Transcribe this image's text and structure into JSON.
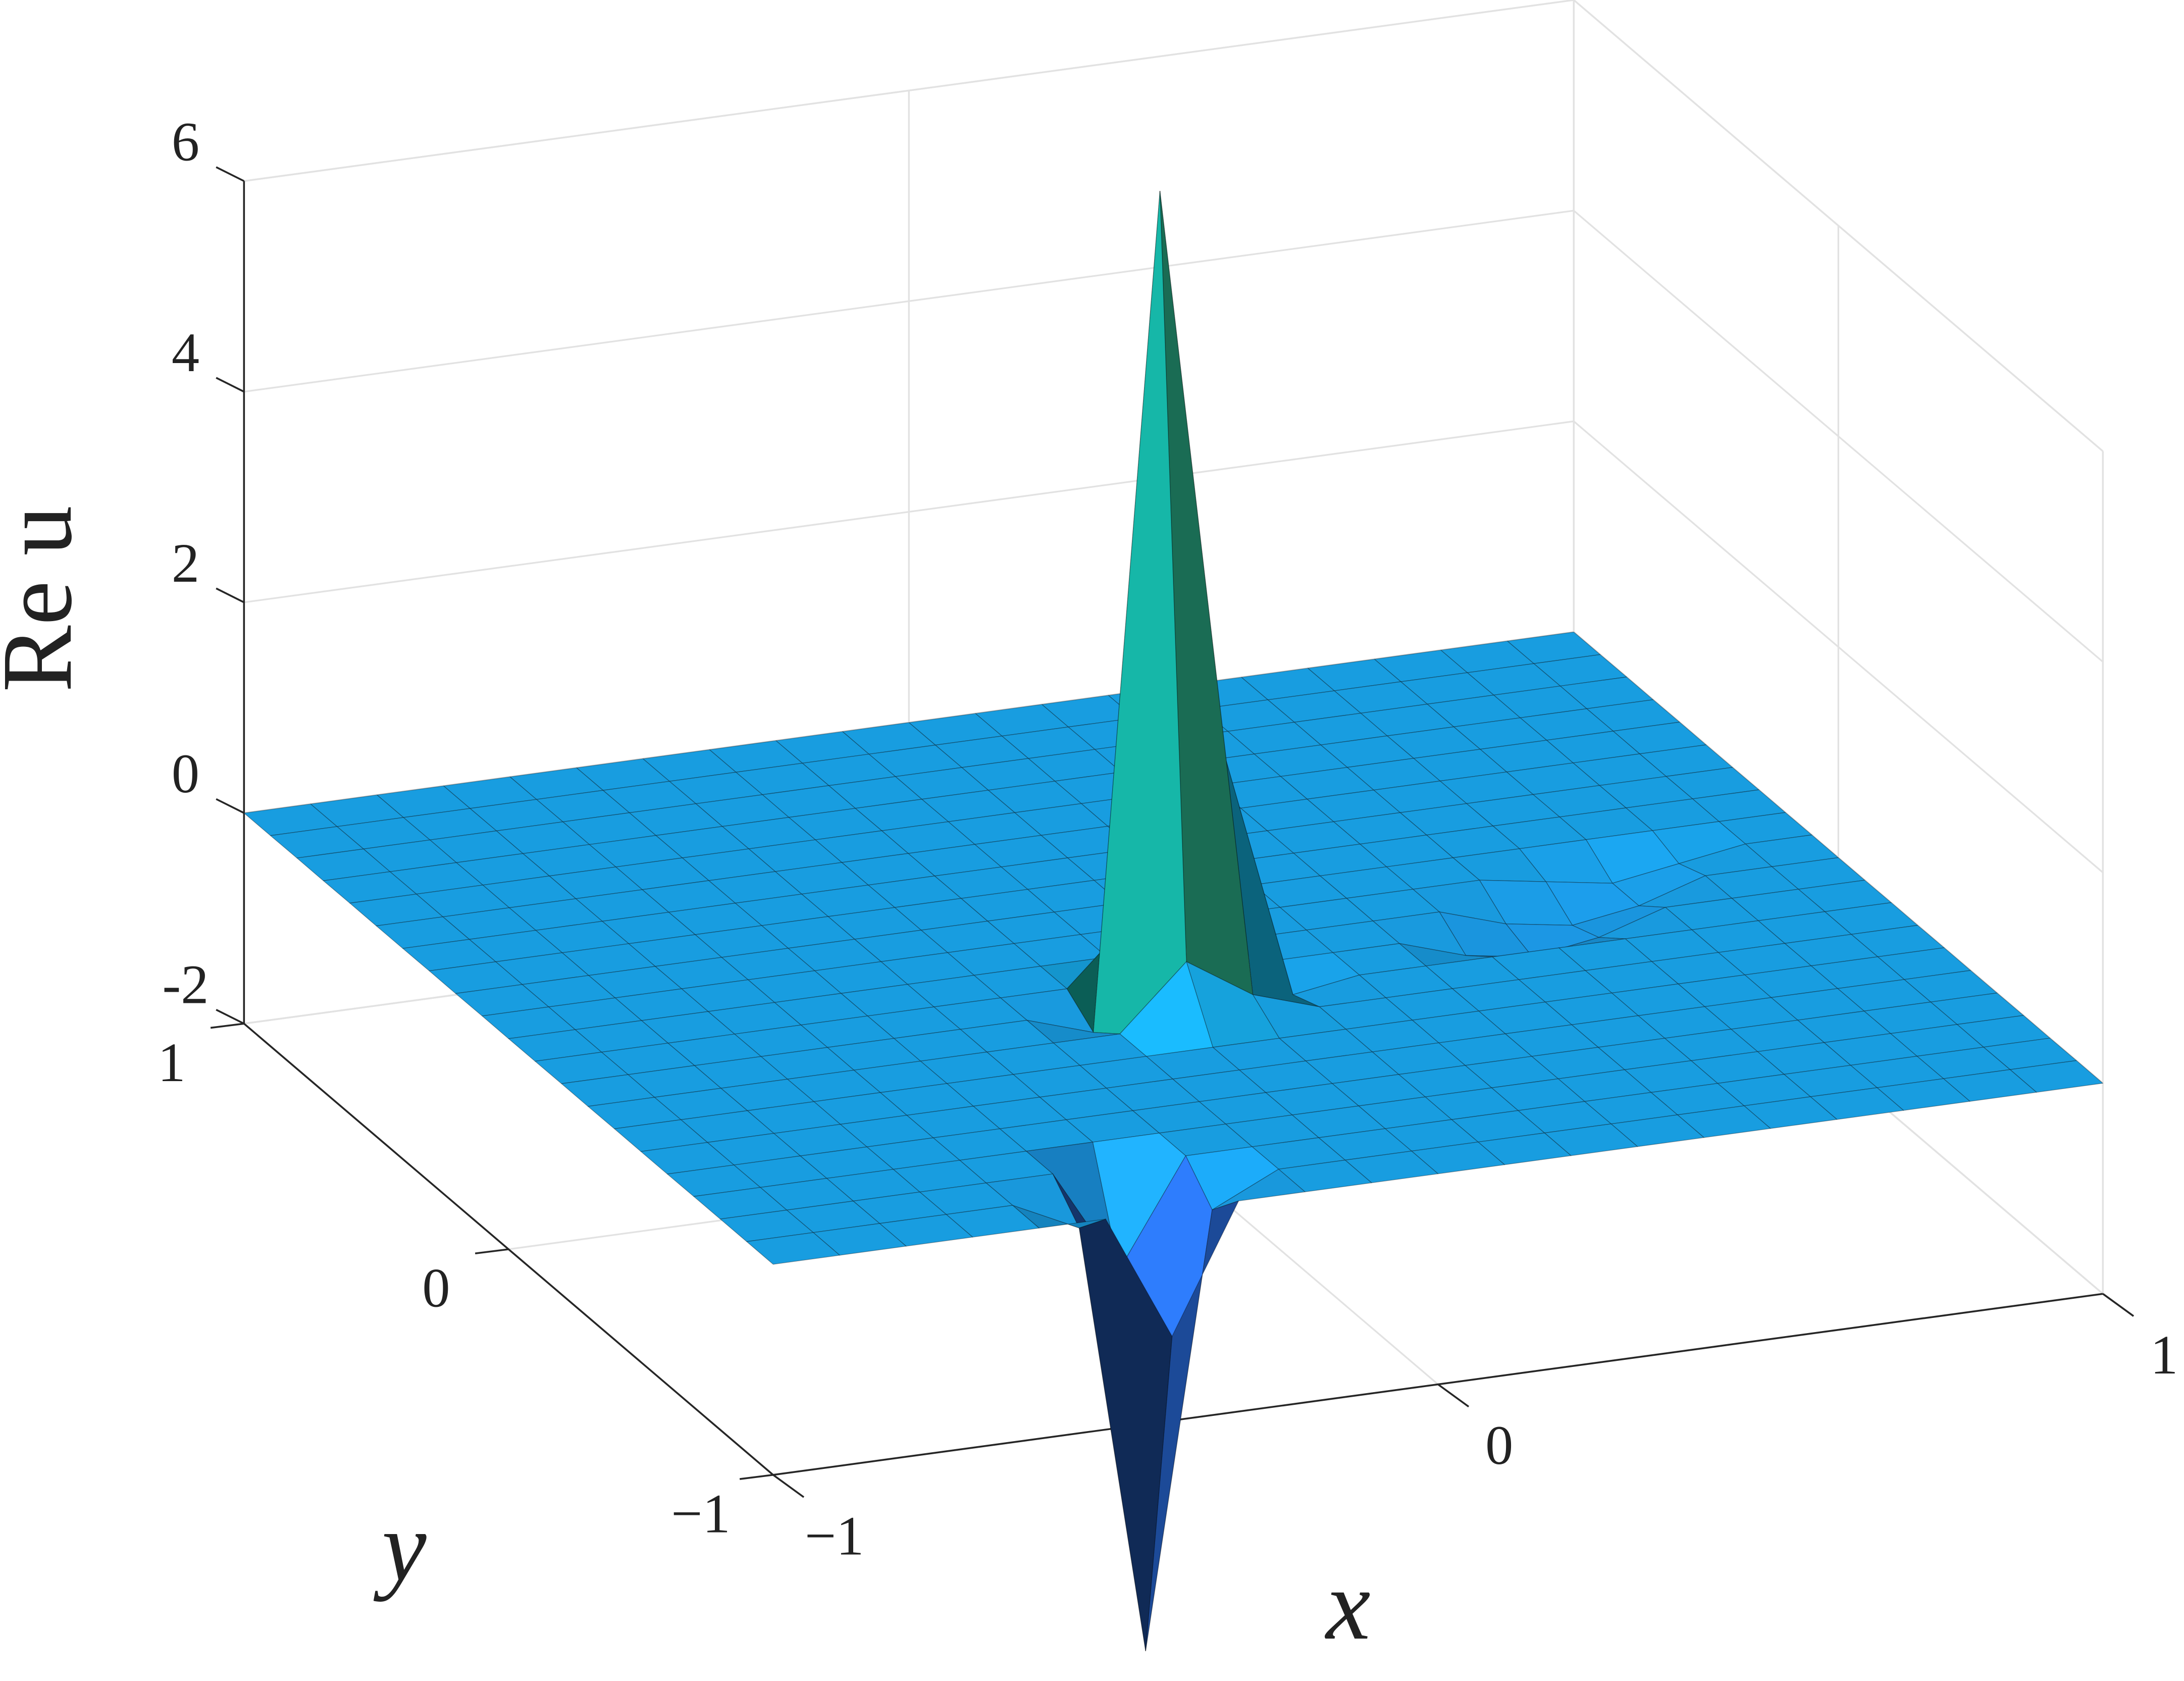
{
  "chart_data": {
    "type": "surface",
    "xlabel": "x",
    "ylabel": "y",
    "zlabel": "Re u",
    "xlim": [
      -1,
      1
    ],
    "ylim": [
      -1,
      1
    ],
    "zlim": [
      -2,
      6
    ],
    "xticks": [
      {
        "value": -1,
        "label": "−1"
      },
      0,
      1
    ],
    "yticks": [
      {
        "value": -1,
        "label": "−1"
      },
      0,
      1
    ],
    "zticks": [
      -2,
      0,
      2,
      4,
      6
    ],
    "grid": true,
    "colormap": "parula",
    "x": [
      -1,
      -0.9,
      -0.8,
      -0.7,
      -0.6,
      -0.5,
      -0.4,
      -0.3,
      -0.2,
      -0.1,
      0,
      0.1,
      0.2,
      0.3,
      0.4,
      0.5,
      0.6,
      0.7,
      0.8,
      0.9,
      1
    ],
    "y": [
      -1,
      -0.9,
      -0.8,
      -0.7,
      -0.6,
      -0.5,
      -0.4,
      -0.3,
      -0.2,
      -0.1,
      0,
      0.1,
      0.2,
      0.3,
      0.4,
      0.5,
      0.6,
      0.7,
      0.8,
      0.9,
      1
    ],
    "z": [
      [
        0,
        0,
        0,
        0,
        0,
        0,
        -1.2,
        0,
        0,
        0,
        0,
        0,
        0,
        0,
        0,
        0,
        0,
        0,
        0,
        0,
        0
      ],
      [
        0,
        0,
        0,
        0,
        0,
        -0.3,
        -4.4,
        -0.3,
        0,
        0,
        0,
        0,
        0,
        0,
        0,
        0,
        0,
        0,
        0,
        0,
        0
      ],
      [
        0,
        0,
        0,
        0,
        0,
        0,
        -1.0,
        0,
        0,
        0,
        0,
        0,
        0,
        0,
        0,
        0,
        0,
        0,
        0,
        0,
        0
      ],
      [
        0,
        0,
        0,
        0,
        0,
        0,
        0,
        0,
        0,
        0,
        0,
        0,
        0,
        0,
        0,
        0,
        0,
        0,
        0,
        0,
        0
      ],
      [
        0,
        0,
        0,
        0,
        0,
        0,
        0,
        0,
        0,
        0,
        0,
        0,
        0,
        0,
        0,
        0,
        0,
        0,
        0,
        0,
        0
      ],
      [
        0,
        0,
        0,
        0,
        0,
        0,
        0,
        0,
        0,
        0,
        0,
        0,
        0,
        0,
        0,
        0,
        0,
        0,
        0,
        0,
        0
      ],
      [
        0,
        0,
        0,
        0,
        0,
        0,
        0,
        0,
        0,
        0,
        0,
        0,
        0,
        0,
        0,
        0,
        0,
        0,
        0,
        0,
        0
      ],
      [
        0,
        0,
        0,
        0,
        0,
        0,
        0,
        0,
        0,
        0.6,
        0.2,
        0,
        0,
        0,
        0,
        0,
        0,
        0,
        0,
        0,
        0
      ],
      [
        0,
        0,
        0,
        0,
        0,
        0,
        0,
        0,
        -0.2,
        7.7,
        2.2,
        -0.1,
        0,
        0,
        0,
        0,
        0,
        0,
        0,
        0,
        0
      ],
      [
        0,
        0,
        0,
        0,
        0,
        0,
        0,
        0,
        0,
        0.6,
        0.3,
        0,
        0,
        0,
        -0.2,
        -0.3,
        -0.2,
        0,
        0,
        0,
        0
      ],
      [
        0,
        0,
        0,
        0,
        0,
        0,
        0,
        0,
        0,
        0,
        0,
        0,
        0,
        0,
        0,
        -0.2,
        -0.3,
        -0.2,
        0,
        0,
        0
      ],
      [
        0,
        0,
        0,
        0,
        0,
        0,
        0,
        0,
        0,
        0,
        0,
        0,
        0,
        0,
        0,
        0,
        -0.1,
        -0.2,
        -0.1,
        0,
        0
      ],
      [
        0,
        0,
        0,
        0,
        0,
        0,
        0,
        0,
        0,
        0,
        0,
        0,
        0,
        0,
        0,
        0,
        0,
        0,
        0,
        0,
        0
      ],
      [
        0,
        0,
        0,
        0,
        0,
        0,
        0,
        0,
        0,
        0,
        0,
        0,
        0,
        0,
        0,
        0,
        0,
        0,
        0,
        0,
        0
      ],
      [
        0,
        0,
        0,
        0,
        0,
        0,
        0,
        0,
        0,
        0,
        0,
        0,
        0,
        0,
        0,
        0,
        0,
        0,
        0,
        0,
        0
      ],
      [
        0,
        0,
        0,
        0,
        0,
        0,
        0,
        0,
        0,
        0,
        0,
        0,
        0,
        0,
        0,
        0,
        0,
        0,
        0,
        0,
        0
      ],
      [
        0,
        0,
        0,
        0,
        0,
        0,
        0,
        0,
        0,
        0,
        0,
        0,
        0,
        0,
        0,
        0,
        0,
        0,
        0,
        0,
        0
      ],
      [
        0,
        0,
        0,
        0,
        0,
        0,
        0,
        0,
        0,
        0,
        0,
        0,
        0,
        0,
        0,
        0,
        0,
        0,
        0,
        0,
        0
      ],
      [
        0,
        0,
        0,
        0,
        0,
        0,
        0,
        0,
        0,
        0,
        0,
        0,
        0,
        0,
        0,
        0,
        0,
        0,
        0,
        0,
        0
      ],
      [
        0,
        0,
        0,
        0,
        0,
        0,
        0,
        0,
        0,
        0,
        0,
        0,
        0,
        0,
        0,
        0,
        0,
        0,
        0,
        0,
        0
      ],
      [
        0,
        0,
        0,
        0,
        0,
        0,
        0,
        0,
        0,
        0,
        0,
        0,
        0,
        0,
        0,
        0,
        0,
        0,
        0,
        0,
        0
      ]
    ]
  }
}
